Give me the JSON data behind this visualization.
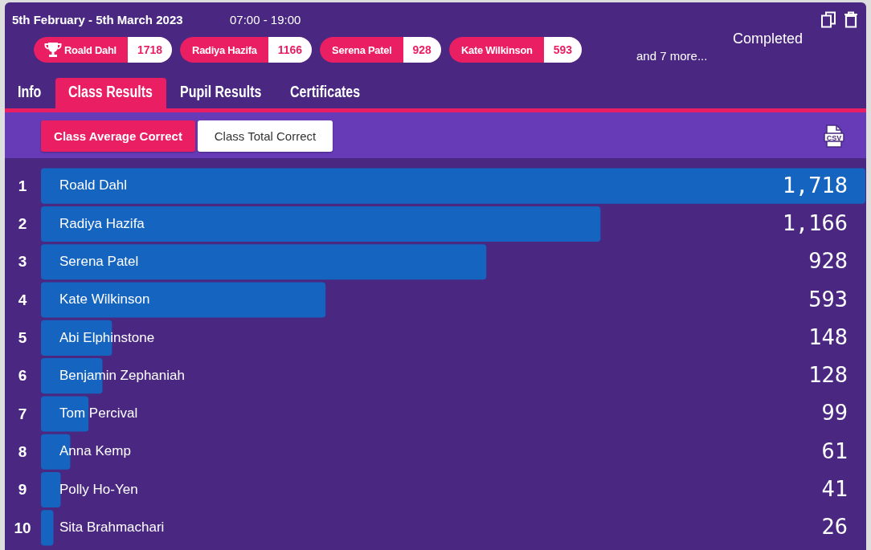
{
  "chart_data": {
    "type": "bar",
    "orientation": "horizontal",
    "title": "5th February - 5th March 2023",
    "subtitle": "07:00 - 19:00",
    "categories": [
      "Roald Dahl",
      "Radiya Hazifa",
      "Serena Patel",
      "Kate Wilkinson",
      "Abi Elphinstone",
      "Benjamin Zephaniah",
      "Tom Percival",
      "Anna Kemp",
      "Polly Ho-Yen",
      "Sita Brahmachari"
    ],
    "values": [
      1718,
      1166,
      928,
      593,
      148,
      128,
      99,
      61,
      41,
      26
    ],
    "value_labels": [
      "1,718",
      "1,166",
      "928",
      "593",
      "148",
      "128",
      "99",
      "61",
      "41",
      "26"
    ],
    "color": "#1565c0",
    "tick_labels": "y",
    "annotations": [
      "Roald Dahl",
      "1718",
      "Radiya Hazifa",
      "1166",
      "Serena Patel",
      "928",
      "Kate Wilkinson",
      "593",
      "and 7 more...",
      "Completed",
      "Info",
      "Class Results",
      "Pupil Results",
      "Certificates",
      "Class Average Correct",
      "Class Total Correct",
      "CSV",
      "1",
      "2",
      "3",
      "4",
      "5",
      "6",
      "7",
      "8",
      "9",
      "10"
    ]
  }
}
